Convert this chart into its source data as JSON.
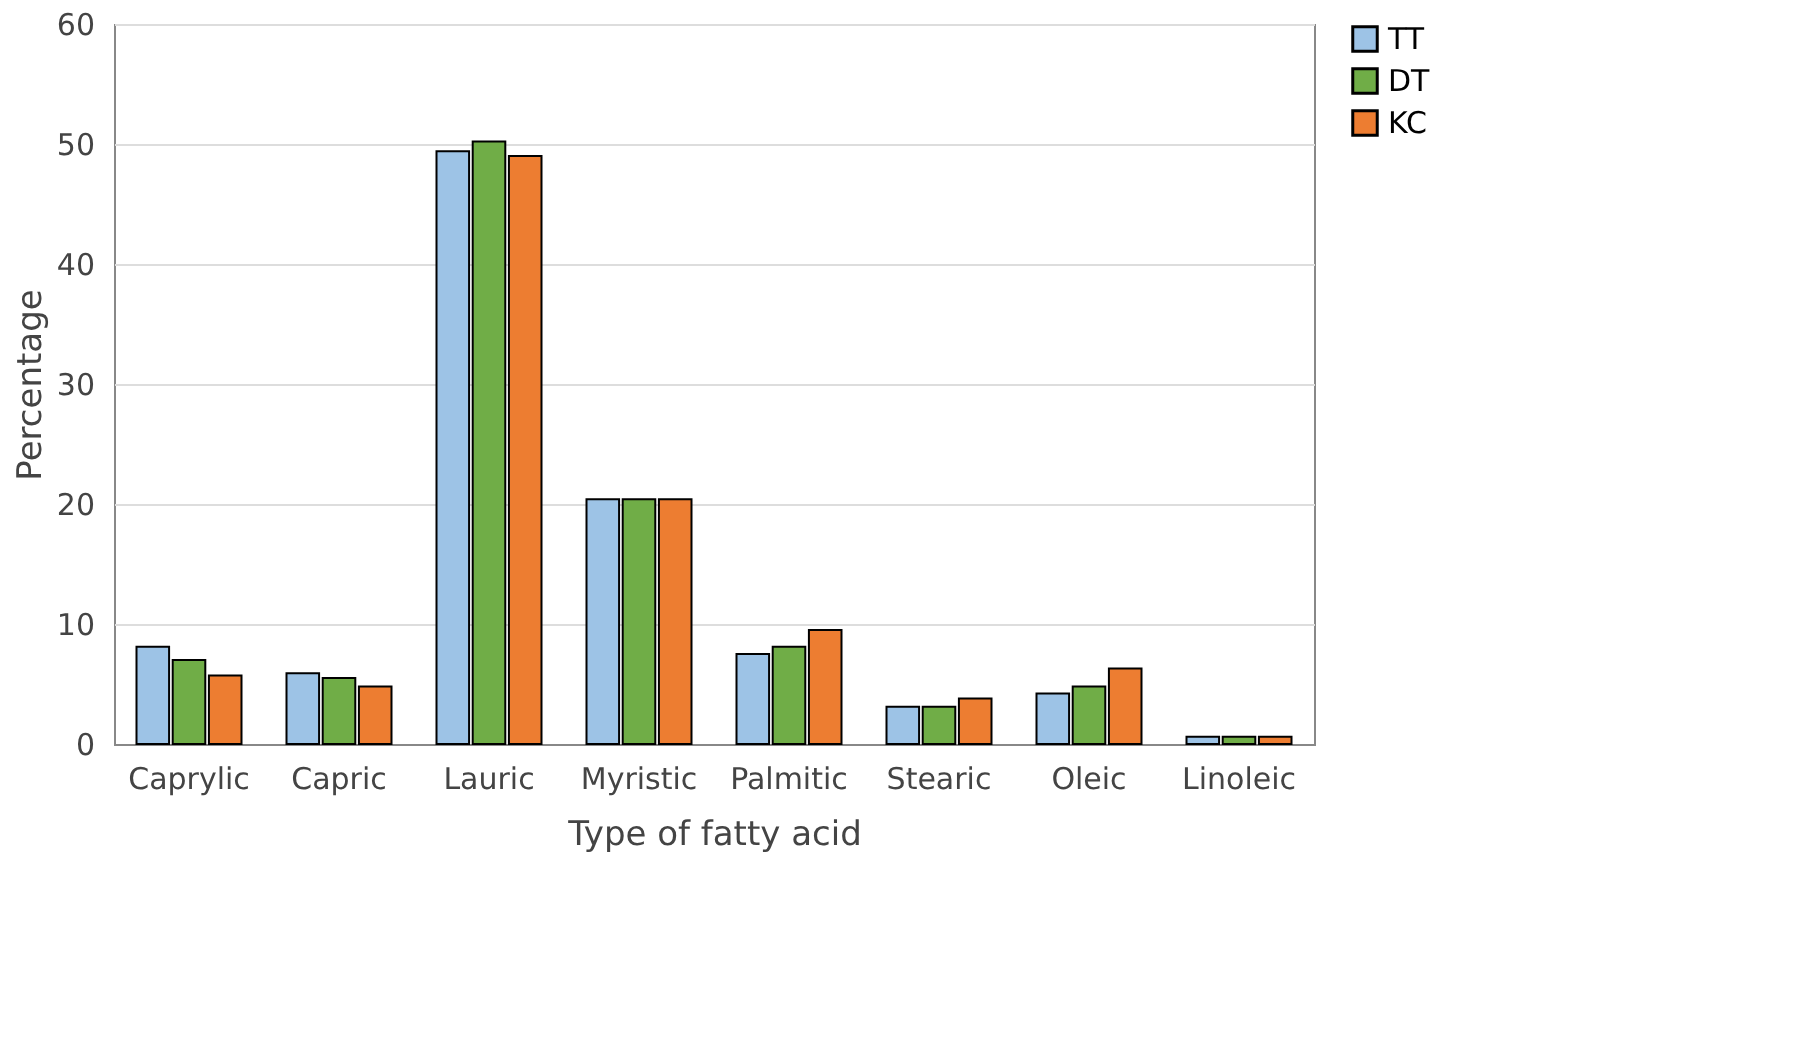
{
  "chart_data": {
    "type": "bar",
    "xlabel": "Type of fatty acid",
    "ylabel": "Percentage",
    "categories": [
      "Caprylic",
      "Capric",
      "Lauric",
      "Myristic",
      "Palmitic",
      "Stearic",
      "Oleic",
      "Linoleic"
    ],
    "series": [
      {
        "name": "TT",
        "color": "#9dc3e6",
        "values": [
          8.1,
          5.9,
          49.4,
          20.4,
          7.5,
          3.1,
          4.2,
          0.6
        ]
      },
      {
        "name": "DT",
        "color": "#70ad47",
        "values": [
          7.0,
          5.5,
          50.2,
          20.4,
          8.1,
          3.1,
          4.8,
          0.6
        ]
      },
      {
        "name": "KC",
        "color": "#ed7d31",
        "values": [
          5.7,
          4.8,
          49.0,
          20.4,
          9.5,
          3.8,
          6.3,
          0.6
        ]
      }
    ],
    "ylim": [
      0,
      60
    ],
    "yticks": [
      0,
      10,
      20,
      30,
      40,
      50,
      60
    ],
    "grid": "y",
    "legend": "right"
  }
}
